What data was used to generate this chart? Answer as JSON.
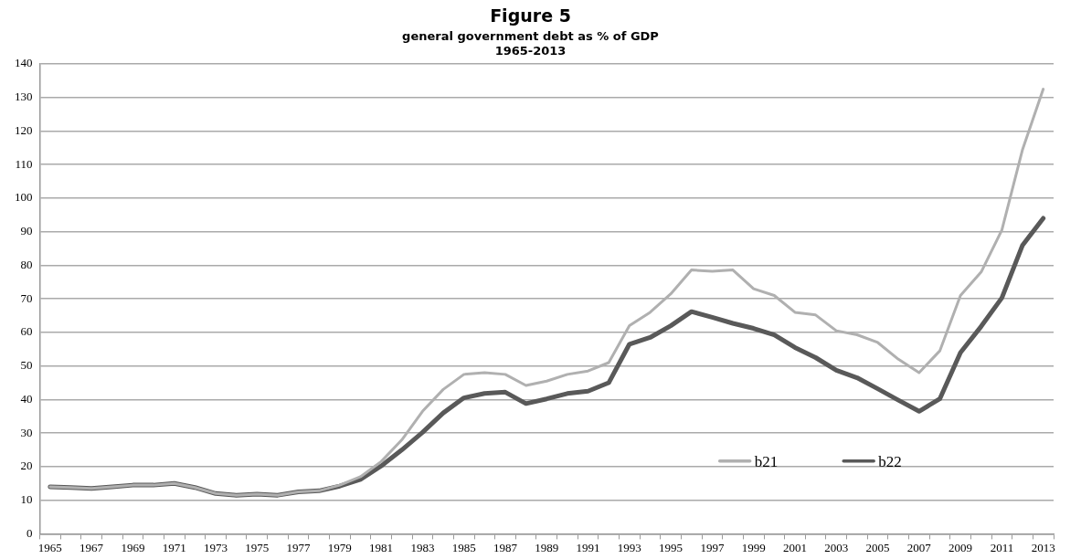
{
  "chart_data": {
    "type": "line",
    "title": "Figure 5",
    "subtitle": "general government debt as % of GDP\n1965-2013",
    "categories": [
      "1965",
      null,
      "1967",
      null,
      "1969",
      null,
      "1971",
      null,
      "1973",
      null,
      "1975",
      null,
      "1977",
      null,
      "1979",
      null,
      "1981",
      null,
      "1983",
      null,
      "1985",
      null,
      "1987",
      null,
      "1989",
      null,
      "1991",
      null,
      "1993",
      null,
      "1995",
      null,
      "1997",
      null,
      "1999",
      null,
      "2001",
      null,
      "2003",
      null,
      "2005",
      null,
      "2007",
      null,
      "2009",
      null,
      "2011",
      null,
      "2013"
    ],
    "series": [
      {
        "name": "b21",
        "color": "#b0b0b0",
        "values": [
          14,
          13.8,
          13.5,
          14,
          14.5,
          14.5,
          15,
          13.8,
          12,
          11.5,
          11.8,
          11.5,
          12.5,
          12.8,
          14.5,
          17,
          21.5,
          28,
          36.5,
          43,
          47.5,
          48,
          47.5,
          44.2,
          45.5,
          47.5,
          48.5,
          51,
          62,
          66,
          71.5,
          78.6,
          78.2,
          78.6,
          73,
          71,
          66,
          65.2,
          60.5,
          59.3,
          57,
          52,
          48,
          54.5,
          71,
          78,
          90.5,
          114.5,
          132.5
        ]
      },
      {
        "name": "b22",
        "color": "#595959",
        "values": [
          14,
          13.8,
          13.5,
          14,
          14.5,
          14.5,
          15,
          13.8,
          12,
          11.5,
          11.8,
          11.5,
          12.5,
          12.8,
          14.2,
          16.2,
          20.2,
          25,
          30.2,
          36,
          40.5,
          41.8,
          42.2,
          38.8,
          40.2,
          41.8,
          42.5,
          45,
          56.5,
          58.5,
          62,
          66.2,
          64.5,
          62.7,
          61.2,
          59.3,
          55.5,
          52.5,
          48.7,
          46.5,
          43.2,
          39.8,
          36.5,
          40.2,
          54,
          61.8,
          70.3,
          86,
          94
        ]
      }
    ],
    "ylim": [
      0,
      140
    ],
    "yticks": [
      0,
      10,
      20,
      30,
      40,
      50,
      60,
      70,
      80,
      90,
      100,
      110,
      120,
      130,
      140
    ],
    "grid": "y",
    "legend": "bottom right",
    "marker": "none",
    "line_style": "solid"
  }
}
